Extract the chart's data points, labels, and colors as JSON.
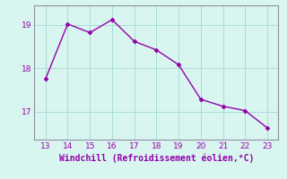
{
  "x": [
    13,
    14,
    15,
    16,
    17,
    18,
    19,
    20,
    21,
    22,
    23
  ],
  "y": [
    17.75,
    19.02,
    18.82,
    19.12,
    18.62,
    18.42,
    18.08,
    17.28,
    17.12,
    17.02,
    16.62
  ],
  "line_color": "#9400aa",
  "marker": "D",
  "marker_size": 2.5,
  "bg_color": "#d8f5f0",
  "grid_color": "#aaddd8",
  "spine_color": "#9090a0",
  "xlabel": "Windchill (Refroidissement éolien,°C)",
  "xlabel_color": "#9400aa",
  "tick_color": "#9400aa",
  "xlim": [
    12.5,
    23.5
  ],
  "ylim": [
    16.35,
    19.45
  ],
  "xticks": [
    13,
    14,
    15,
    16,
    17,
    18,
    19,
    20,
    21,
    22,
    23
  ],
  "yticks": [
    17,
    18,
    19
  ],
  "xlabel_fontsize": 7.0,
  "tick_fontsize": 6.5
}
